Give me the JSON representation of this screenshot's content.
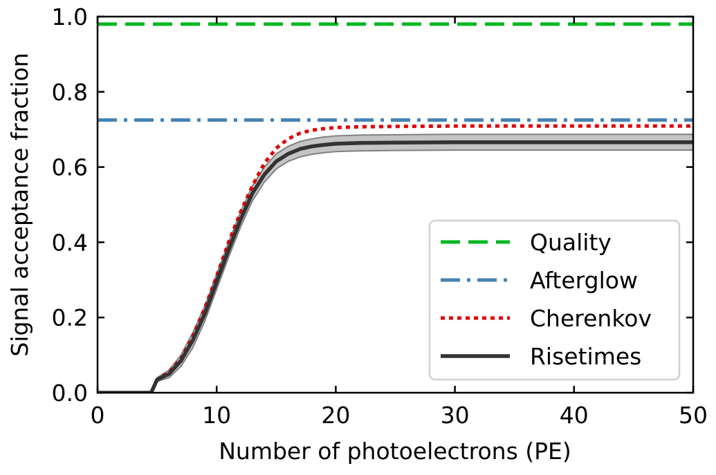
{
  "chart_data": {
    "type": "line",
    "title": "",
    "xlabel": "Number of photoelectrons (PE)",
    "ylabel": "Signal acceptance fraction",
    "xlim": [
      0,
      50
    ],
    "ylim": [
      0.0,
      1.0
    ],
    "xticks": [
      0,
      10,
      20,
      30,
      40,
      50
    ],
    "yticks": [
      0.0,
      0.2,
      0.4,
      0.6,
      0.8,
      1.0
    ],
    "xtick_labels": [
      "0",
      "10",
      "20",
      "30",
      "40",
      "50"
    ],
    "ytick_labels": [
      "0.0",
      "0.2",
      "0.4",
      "0.6",
      "0.8",
      "1.0"
    ],
    "grid": false,
    "legend_position": "lower-right",
    "series": [
      {
        "name": "Quality",
        "style": "dashed",
        "color": "#00b821",
        "x": [
          0,
          50
        ],
        "y": [
          0.98,
          0.98
        ]
      },
      {
        "name": "Afterglow",
        "style": "dashdot",
        "color": "#4682b4",
        "x": [
          0,
          50
        ],
        "y": [
          0.725,
          0.725
        ]
      },
      {
        "name": "Cherenkov",
        "style": "dotted",
        "color": "#e00000",
        "x": [
          0,
          1,
          2,
          3,
          4,
          4.5,
          5,
          6,
          7,
          8,
          9,
          10,
          11,
          12,
          13,
          14,
          15,
          16,
          17,
          18,
          19,
          20,
          22,
          25,
          30,
          35,
          40,
          45,
          50
        ],
        "y": [
          0.0,
          0.0,
          0.0,
          0.0,
          0.0,
          0.0,
          0.035,
          0.055,
          0.09,
          0.15,
          0.225,
          0.31,
          0.4,
          0.48,
          0.55,
          0.61,
          0.65,
          0.675,
          0.69,
          0.698,
          0.702,
          0.705,
          0.707,
          0.708,
          0.709,
          0.709,
          0.709,
          0.709,
          0.709
        ]
      },
      {
        "name": "Risetimes",
        "style": "solid",
        "color": "#333333",
        "band_color": "#b0b0b0",
        "x": [
          0,
          1,
          2,
          3,
          4,
          4.5,
          5,
          6,
          7,
          8,
          9,
          10,
          11,
          12,
          13,
          14,
          15,
          16,
          17,
          18,
          19,
          20,
          22,
          25,
          30,
          35,
          40,
          45,
          50
        ],
        "y": [
          0.0,
          0.0,
          0.0,
          0.0,
          0.0,
          0.0,
          0.035,
          0.05,
          0.085,
          0.14,
          0.21,
          0.295,
          0.38,
          0.46,
          0.53,
          0.58,
          0.615,
          0.635,
          0.648,
          0.655,
          0.659,
          0.662,
          0.664,
          0.665,
          0.666,
          0.666,
          0.666,
          0.666,
          0.666
        ],
        "band_lower": [
          0.0,
          0.0,
          0.0,
          0.0,
          0.0,
          0.0,
          0.03,
          0.04,
          0.07,
          0.12,
          0.19,
          0.275,
          0.36,
          0.44,
          0.51,
          0.56,
          0.595,
          0.615,
          0.627,
          0.634,
          0.638,
          0.641,
          0.643,
          0.644,
          0.645,
          0.645,
          0.645,
          0.645,
          0.645
        ],
        "band_upper": [
          0.0,
          0.0,
          0.0,
          0.0,
          0.0,
          0.0,
          0.04,
          0.06,
          0.1,
          0.16,
          0.23,
          0.315,
          0.4,
          0.48,
          0.55,
          0.6,
          0.635,
          0.655,
          0.668,
          0.675,
          0.68,
          0.683,
          0.685,
          0.686,
          0.687,
          0.687,
          0.687,
          0.687,
          0.687
        ]
      }
    ]
  }
}
